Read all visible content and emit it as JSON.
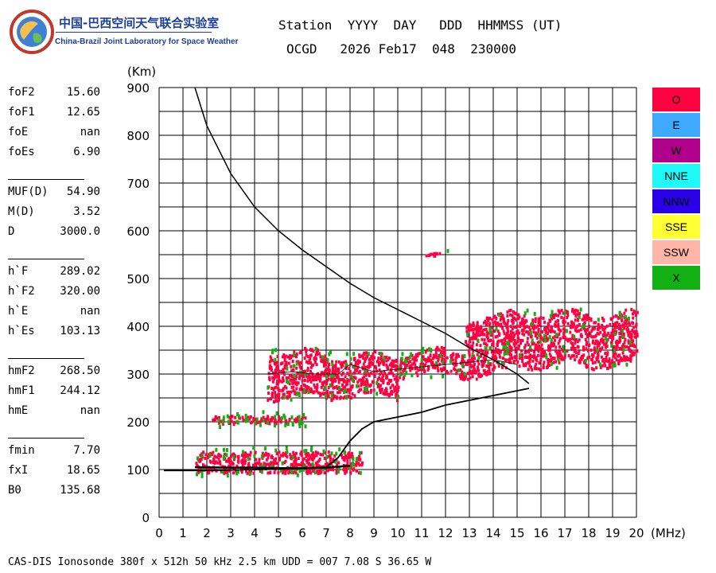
{
  "logo": {
    "text_cn": "中国-巴西空间天气联合实验室",
    "text_en": "China-Brazil Joint Laboratory for Space Weather"
  },
  "header": {
    "line1": "Station  YYYY  DAY   DDD  HHMMSS (UT)",
    "line2": "OCGD   2026 Feb17  048  230000"
  },
  "params": [
    {
      "label": "foF2",
      "value": "15.60"
    },
    {
      "label": "foF1",
      "value": "12.65"
    },
    {
      "label": "foE",
      "value": "nan"
    },
    {
      "label": "foEs",
      "value": "6.90"
    },
    {
      "label": "MUF(D)",
      "value": "54.90"
    },
    {
      "label": "M(D)",
      "value": "3.52"
    },
    {
      "label": "D",
      "value": "3000.0"
    },
    {
      "label": "h`F",
      "value": "289.02"
    },
    {
      "label": "h`F2",
      "value": "320.00"
    },
    {
      "label": "h`E",
      "value": "nan"
    },
    {
      "label": "h`Es",
      "value": "103.13"
    },
    {
      "label": "hmF2",
      "value": "268.50"
    },
    {
      "label": "hmF1",
      "value": "244.12"
    },
    {
      "label": "hmE",
      "value": "nan"
    },
    {
      "label": "fmin",
      "value": "7.70"
    },
    {
      "label": "fxI",
      "value": "18.65"
    },
    {
      "label": "B0",
      "value": "135.68"
    }
  ],
  "legend": [
    {
      "label": "O",
      "color": "#ff0040"
    },
    {
      "label": "E",
      "color": "#3fa9ff"
    },
    {
      "label": "W",
      "color": "#b0008c"
    },
    {
      "label": "NNE",
      "color": "#20f7f7"
    },
    {
      "label": "NNW",
      "color": "#2a00e6"
    },
    {
      "label": "SSE",
      "color": "#ffff33"
    },
    {
      "label": "SSW",
      "color": "#ffb6a8"
    },
    {
      "label": "X",
      "color": "#12b012"
    }
  ],
  "footer": "CAS-DIS Ionosonde 380f x 512h 50 kHz 2.5 km UDD = 007 7.08 S 36.65 W",
  "chart_data": {
    "type": "scatter",
    "xlabel": "(MHz)",
    "ylabel": "(Km)",
    "xlim": [
      0,
      20
    ],
    "ylim": [
      0,
      900
    ],
    "x_ticks": [
      0,
      1,
      2,
      3,
      4,
      5,
      6,
      7,
      8,
      9,
      10,
      11,
      12,
      13,
      14,
      15,
      16,
      17,
      18,
      19,
      20
    ],
    "y_ticks": [
      0,
      100,
      200,
      300,
      400,
      500,
      600,
      700,
      800,
      900
    ],
    "grid": true,
    "colors": {
      "O": "#ff0040",
      "X": "#12b012",
      "curve": "#000000"
    },
    "echo_regions": [
      {
        "name": "O",
        "f": [
          1.5,
          8.5
        ],
        "h": [
          95,
          140
        ]
      },
      {
        "name": "O",
        "f": [
          2.2,
          6.1
        ],
        "h": [
          198,
          215
        ]
      },
      {
        "name": "O",
        "f": [
          4.5,
          7.0
        ],
        "h": [
          255,
          350
        ]
      },
      {
        "name": "O",
        "f": [
          7.0,
          10.0
        ],
        "h": [
          255,
          340
        ]
      },
      {
        "name": "O",
        "f": [
          10.0,
          12.8
        ],
        "h": [
          300,
          350
        ]
      },
      {
        "name": "O",
        "f": [
          12.8,
          14.5
        ],
        "h": [
          300,
          420
        ]
      },
      {
        "name": "O",
        "f": [
          14.5,
          20.0
        ],
        "h": [
          320,
          430
        ]
      },
      {
        "name": "X",
        "f": [
          1.5,
          20.0
        ],
        "h": [
          90,
          430
        ]
      },
      {
        "name": "O",
        "f": [
          11.0,
          11.8
        ],
        "h": [
          550,
          556
        ]
      }
    ],
    "profile_curve": {
      "f": [
        1.5,
        2.0,
        3.0,
        4.0,
        5.0,
        6.0,
        7.0,
        8.0,
        9.0,
        10.0,
        11.0,
        12.0,
        13.0,
        14.0,
        15.0,
        15.5
      ],
      "h": [
        900,
        820,
        720,
        650,
        600,
        560,
        525,
        490,
        460,
        435,
        410,
        385,
        355,
        330,
        300,
        280
      ]
    },
    "profile_bottom": {
      "f": [
        0.2,
        2.0,
        3.0,
        4.0,
        5.0,
        6.0,
        7.0,
        7.5,
        8.0,
        8.5,
        9.0,
        10.0,
        11.0,
        12.0,
        13.0,
        14.0,
        15.0,
        15.5
      ],
      "h": [
        98,
        98,
        99,
        100,
        101,
        102,
        105,
        125,
        160,
        185,
        200,
        210,
        220,
        235,
        245,
        255,
        265,
        270
      ]
    },
    "trace": {
      "f": [
        4.5,
        5.5,
        6.5,
        7.5,
        8.0,
        9.0,
        10.0,
        11.0,
        12.0,
        13.0,
        14.0,
        15.0
      ],
      "h": [
        300,
        305,
        300,
        300,
        320,
        305,
        310,
        315,
        320,
        325,
        330,
        320
      ]
    },
    "es_trace": {
      "f": [
        1.5,
        3,
        4,
        5,
        6,
        7,
        7.5,
        8
      ],
      "h": [
        105,
        104,
        104,
        103,
        103,
        104,
        106,
        108
      ]
    }
  }
}
